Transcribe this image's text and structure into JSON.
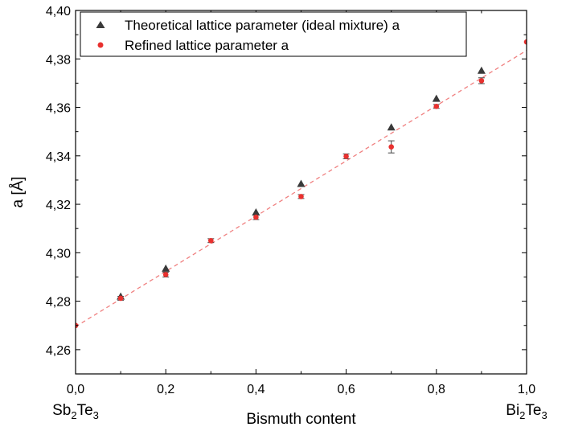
{
  "chart_data": {
    "type": "scatter",
    "title": "",
    "xlabel": "Bismuth content",
    "ylabel": "a [Å]",
    "xlim": [
      0.0,
      1.0
    ],
    "ylim": [
      4.25,
      4.4
    ],
    "x_ticks": [
      "0,0",
      "0,2",
      "0,4",
      "0,6",
      "0,8",
      "1,0"
    ],
    "y_ticks": [
      "4,26",
      "4,28",
      "4,30",
      "4,32",
      "4,34",
      "4,36",
      "4,38",
      "4,40"
    ],
    "x_end_labels": {
      "left": {
        "base1": "Sb",
        "sub1": "2",
        "base2": "Te",
        "sub2": "3"
      },
      "right": {
        "base1": "Bi",
        "sub1": "2",
        "base2": "Te",
        "sub2": "3"
      }
    },
    "legend_position": "top-left",
    "series": [
      {
        "name": "Theoretical lattice parameter (ideal mixture) a",
        "marker": "triangle",
        "color": "#3a3a3a",
        "x": [
          0.1,
          0.2,
          0.4,
          0.5,
          0.7,
          0.8,
          0.9
        ],
        "y": [
          4.282,
          4.2935,
          4.3167,
          4.3285,
          4.3518,
          4.3636,
          4.3752
        ]
      },
      {
        "name": "Refined lattice parameter a",
        "marker": "circle",
        "color": "#e8312f",
        "x": [
          0.0,
          0.1,
          0.2,
          0.3,
          0.4,
          0.5,
          0.6,
          0.7,
          0.8,
          0.9,
          1.0
        ],
        "y": [
          4.27,
          4.2812,
          4.291,
          4.305,
          4.3147,
          4.3232,
          4.3398,
          4.3437,
          4.3604,
          4.371,
          4.387
        ],
        "err": [
          0.0,
          0.0008,
          0.001,
          0.0008,
          0.001,
          0.0008,
          0.001,
          0.0025,
          0.0008,
          0.0012,
          0.0
        ]
      }
    ],
    "fit_line": {
      "style": "dashed",
      "color": "#f08080",
      "x": [
        0.0,
        1.0
      ],
      "y": [
        4.2695,
        4.3835
      ]
    }
  }
}
